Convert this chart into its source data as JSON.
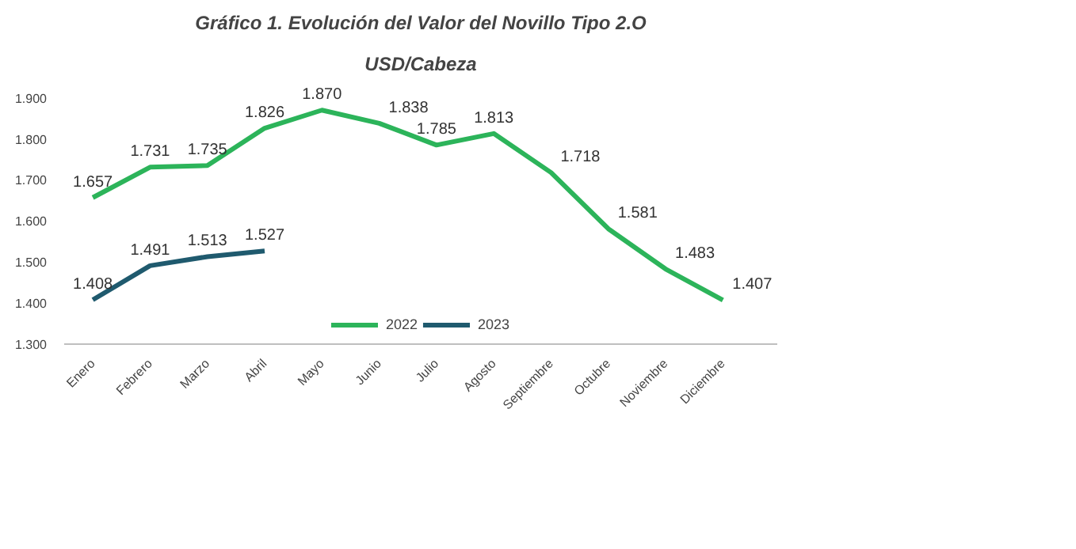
{
  "chart_data": {
    "type": "line",
    "title": "Gráfico 1. Evolución del Valor del Novillo Tipo 2.O",
    "subtitle": "USD/Cabeza",
    "categories": [
      "Enero",
      "Febrero",
      "Marzo",
      "Abril",
      "Mayo",
      "Junio",
      "Julio",
      "Agosto",
      "Septiembre",
      "Octubre",
      "Noviembre",
      "Diciembre"
    ],
    "series": [
      {
        "name": "2022",
        "color": "#2cb45a",
        "values": [
          1657,
          1731,
          1735,
          1826,
          1870,
          1838,
          1785,
          1813,
          1718,
          1581,
          1483,
          1407
        ],
        "value_labels": [
          "1.657",
          "1.731",
          "1.735",
          "1.826",
          "1.870",
          "1.838",
          "1.785",
          "1.813",
          "1.718",
          "1.581",
          "1.483",
          "1.407"
        ]
      },
      {
        "name": "2023",
        "color": "#1f5a6e",
        "values": [
          1408,
          1491,
          1513,
          1527,
          null,
          null,
          null,
          null,
          null,
          null,
          null,
          null
        ],
        "value_labels": [
          "1.408",
          "1.491",
          "1.513",
          "1.527",
          null,
          null,
          null,
          null,
          null,
          null,
          null,
          null
        ]
      }
    ],
    "ylim": [
      1300,
      1900
    ],
    "yticks": [
      {
        "value": 1300,
        "label": "1.300"
      },
      {
        "value": 1400,
        "label": "1.400"
      },
      {
        "value": 1500,
        "label": "1.500"
      },
      {
        "value": 1600,
        "label": "1.600"
      },
      {
        "value": 1700,
        "label": "1.700"
      },
      {
        "value": 1800,
        "label": "1.800"
      },
      {
        "value": 1900,
        "label": "1.900"
      }
    ],
    "grid": false,
    "legend": "bottom",
    "marker": "none",
    "line_style": "solid"
  }
}
